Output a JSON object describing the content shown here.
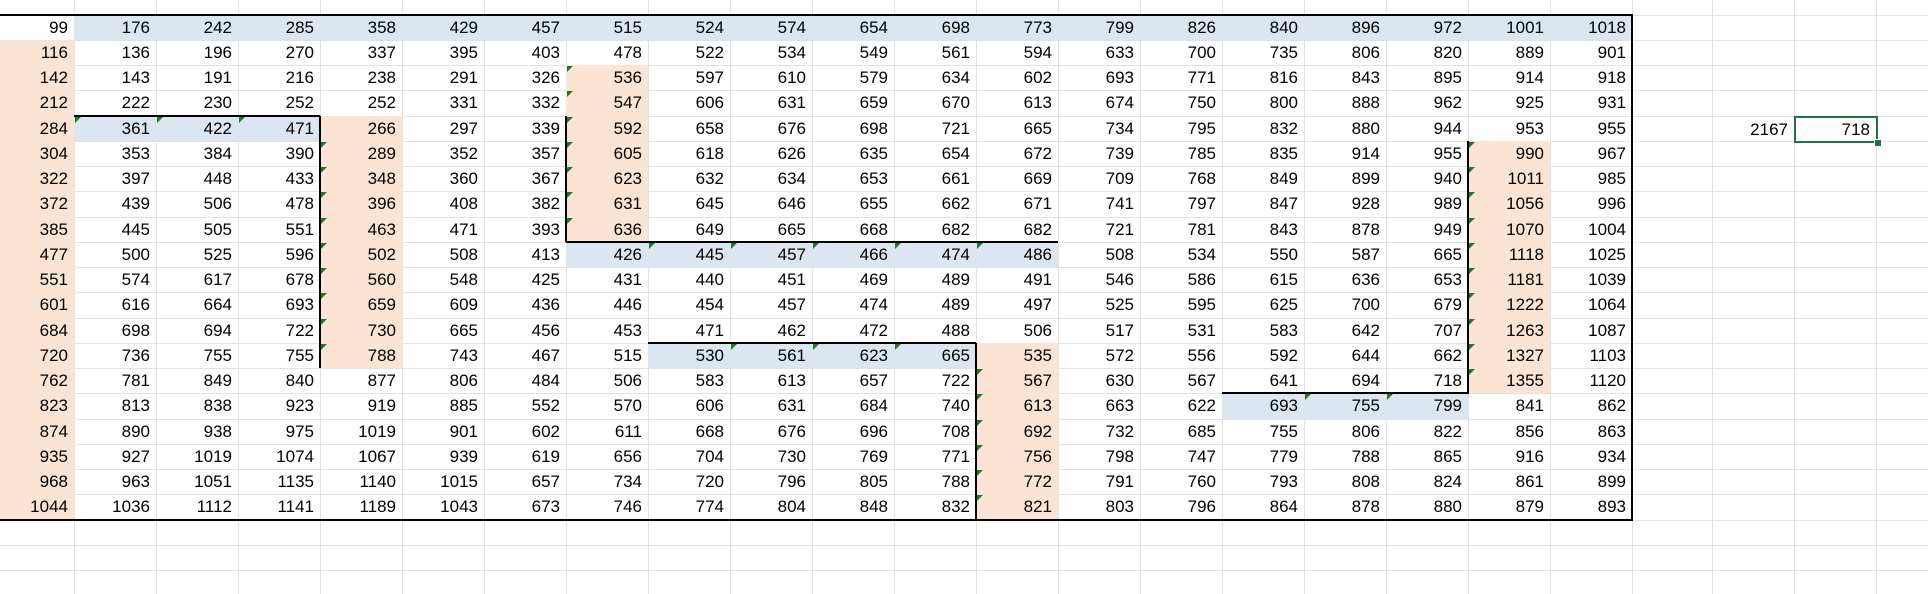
{
  "grid": {
    "rows": [
      [
        "99",
        "176",
        "242",
        "285",
        "358",
        "429",
        "457",
        "515",
        "524",
        "574",
        "654",
        "698",
        "773",
        "799",
        "826",
        "840",
        "896",
        "972",
        "1001",
        "1018"
      ],
      [
        "116",
        "136",
        "196",
        "270",
        "337",
        "395",
        "403",
        "478",
        "522",
        "534",
        "549",
        "561",
        "594",
        "633",
        "700",
        "735",
        "806",
        "820",
        "889",
        "901"
      ],
      [
        "142",
        "143",
        "191",
        "216",
        "238",
        "291",
        "326",
        "536",
        "597",
        "610",
        "579",
        "634",
        "602",
        "693",
        "771",
        "816",
        "843",
        "895",
        "914",
        "918"
      ],
      [
        "212",
        "222",
        "230",
        "252",
        "252",
        "331",
        "332",
        "547",
        "606",
        "631",
        "659",
        "670",
        "613",
        "674",
        "750",
        "800",
        "888",
        "962",
        "925",
        "931"
      ],
      [
        "284",
        "361",
        "422",
        "471",
        "266",
        "297",
        "339",
        "592",
        "658",
        "676",
        "698",
        "721",
        "665",
        "734",
        "795",
        "832",
        "880",
        "944",
        "953",
        "955"
      ],
      [
        "304",
        "353",
        "384",
        "390",
        "289",
        "352",
        "357",
        "605",
        "618",
        "626",
        "635",
        "654",
        "672",
        "739",
        "785",
        "835",
        "914",
        "955",
        "990",
        "967"
      ],
      [
        "322",
        "397",
        "448",
        "433",
        "348",
        "360",
        "367",
        "623",
        "632",
        "634",
        "653",
        "661",
        "669",
        "709",
        "768",
        "849",
        "899",
        "940",
        "1011",
        "985"
      ],
      [
        "372",
        "439",
        "506",
        "478",
        "396",
        "408",
        "382",
        "631",
        "645",
        "646",
        "655",
        "662",
        "671",
        "741",
        "797",
        "847",
        "928",
        "989",
        "1056",
        "996"
      ],
      [
        "385",
        "445",
        "505",
        "551",
        "463",
        "471",
        "393",
        "636",
        "649",
        "665",
        "668",
        "682",
        "682",
        "721",
        "781",
        "843",
        "878",
        "949",
        "1070",
        "1004"
      ],
      [
        "477",
        "500",
        "525",
        "596",
        "502",
        "508",
        "413",
        "426",
        "445",
        "457",
        "466",
        "474",
        "486",
        "508",
        "534",
        "550",
        "587",
        "665",
        "1118",
        "1025"
      ],
      [
        "551",
        "574",
        "617",
        "678",
        "560",
        "548",
        "425",
        "431",
        "440",
        "451",
        "469",
        "489",
        "491",
        "546",
        "586",
        "615",
        "636",
        "653",
        "1181",
        "1039"
      ],
      [
        "601",
        "616",
        "664",
        "693",
        "659",
        "609",
        "436",
        "446",
        "454",
        "457",
        "474",
        "489",
        "497",
        "525",
        "595",
        "625",
        "700",
        "679",
        "1222",
        "1064"
      ],
      [
        "684",
        "698",
        "694",
        "722",
        "730",
        "665",
        "456",
        "453",
        "471",
        "462",
        "472",
        "488",
        "506",
        "517",
        "531",
        "583",
        "642",
        "707",
        "1263",
        "1087"
      ],
      [
        "720",
        "736",
        "755",
        "755",
        "788",
        "743",
        "467",
        "515",
        "530",
        "561",
        "623",
        "665",
        "535",
        "572",
        "556",
        "592",
        "644",
        "662",
        "1327",
        "1103"
      ],
      [
        "762",
        "781",
        "849",
        "840",
        "877",
        "806",
        "484",
        "506",
        "583",
        "613",
        "657",
        "722",
        "567",
        "630",
        "567",
        "641",
        "694",
        "718",
        "1355",
        "1120"
      ],
      [
        "823",
        "813",
        "838",
        "923",
        "919",
        "885",
        "552",
        "570",
        "606",
        "631",
        "684",
        "740",
        "613",
        "663",
        "622",
        "693",
        "755",
        "799",
        "841",
        "862"
      ],
      [
        "874",
        "890",
        "938",
        "975",
        "1019",
        "901",
        "602",
        "611",
        "668",
        "676",
        "696",
        "708",
        "692",
        "732",
        "685",
        "755",
        "806",
        "822",
        "856",
        "863"
      ],
      [
        "935",
        "927",
        "1019",
        "1074",
        "1067",
        "939",
        "619",
        "656",
        "704",
        "730",
        "769",
        "771",
        "756",
        "798",
        "747",
        "779",
        "788",
        "865",
        "916",
        "934"
      ],
      [
        "968",
        "963",
        "1051",
        "1135",
        "1140",
        "1015",
        "657",
        "734",
        "720",
        "796",
        "805",
        "788",
        "772",
        "791",
        "760",
        "793",
        "808",
        "824",
        "861",
        "899"
      ],
      [
        "1044",
        "1036",
        "1112",
        "1141",
        "1189",
        "1043",
        "673",
        "746",
        "774",
        "804",
        "848",
        "832",
        "821",
        "803",
        "796",
        "864",
        "878",
        "880",
        "879",
        "893"
      ]
    ]
  },
  "side_cells": {
    "label_value": "2167",
    "selected_value": "718"
  },
  "colors": {
    "highlight_blue": "#dce6f0",
    "highlight_peach": "#fce4d4",
    "selection_green": "#217346",
    "error_triangle": "#1f7a1f"
  }
}
